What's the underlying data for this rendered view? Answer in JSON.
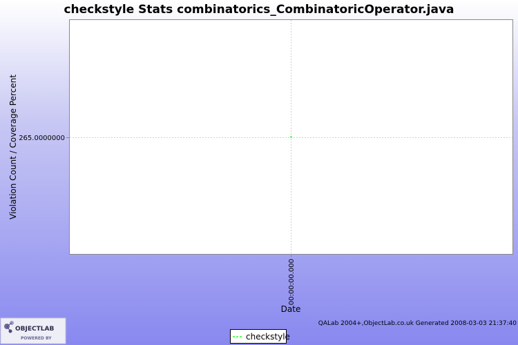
{
  "chart_data": {
    "type": "line",
    "title": "checkstyle  Stats combinatorics_CombinatoricOperator.java",
    "xlabel": "Date",
    "ylabel": "Violation Count / Coverage Percent",
    "x_ticks": [
      "00:00:00.000"
    ],
    "y_ticks": [
      "265.0000000"
    ],
    "ylim": [
      264,
      266
    ],
    "series": [
      {
        "name": "checkstyle",
        "color": "#55ff55",
        "points": [
          {
            "x": "00:00:00.000",
            "y": 265
          }
        ]
      }
    ],
    "grid": true,
    "legend_position": "bottom-center"
  },
  "footer": {
    "credit": "QALab 2004+,ObjectLab.co.uk  Generated 2008-03-03 21:37:40"
  },
  "logo": {
    "name": "OBJECTLAB",
    "tagline": "POWERED BY"
  }
}
